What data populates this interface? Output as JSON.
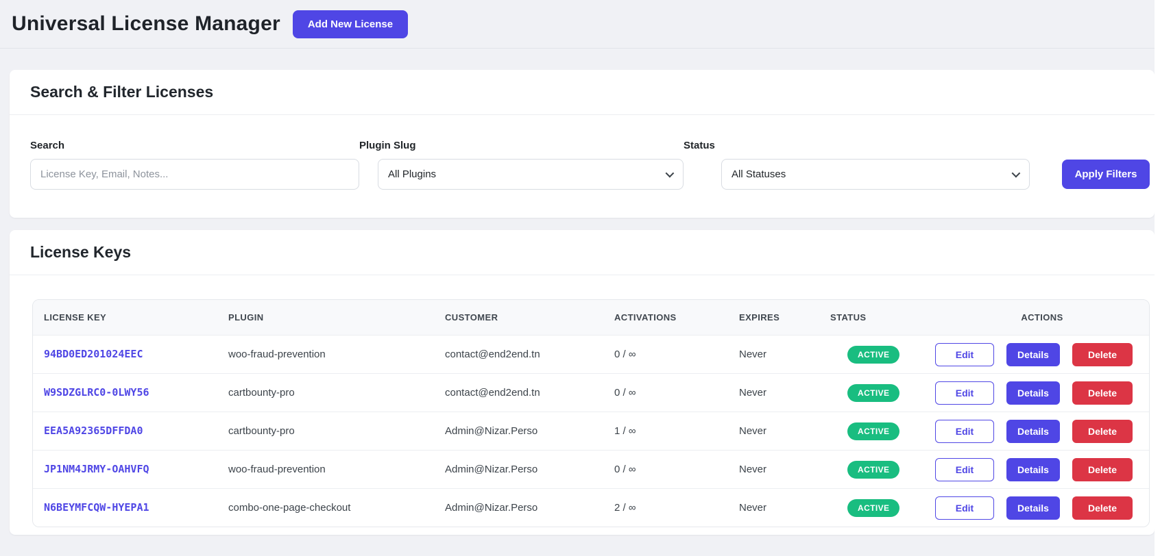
{
  "page": {
    "title": "Universal License Manager",
    "add_button": "Add New License"
  },
  "filters": {
    "card_title": "Search & Filter Licenses",
    "search_label": "Search",
    "search_placeholder": "License Key, Email, Notes...",
    "plugin_label": "Plugin Slug",
    "plugin_value": "All Plugins",
    "status_label": "Status",
    "status_value": "All Statuses",
    "apply_button": "Apply Filters"
  },
  "licenses": {
    "card_title": "License Keys",
    "columns": [
      "LICENSE KEY",
      "PLUGIN",
      "CUSTOMER",
      "ACTIVATIONS",
      "EXPIRES",
      "STATUS",
      "ACTIONS"
    ],
    "actions": {
      "edit": "Edit",
      "details": "Details",
      "delete": "Delete"
    },
    "rows": [
      {
        "key": "94BD0ED201024EEC",
        "plugin": "woo-fraud-prevention",
        "customer": "contact@end2end.tn",
        "activations": "0 / ∞",
        "expires": "Never",
        "status": "ACTIVE"
      },
      {
        "key": "W9SDZGLRC0-0LWY56",
        "plugin": "cartbounty-pro",
        "customer": "contact@end2end.tn",
        "activations": "0 / ∞",
        "expires": "Never",
        "status": "ACTIVE"
      },
      {
        "key": "EEA5A92365DFFDA0",
        "plugin": "cartbounty-pro",
        "customer": "Admin@Nizar.Perso",
        "activations": "1 / ∞",
        "expires": "Never",
        "status": "ACTIVE"
      },
      {
        "key": "JP1NM4JRMY-OAHVFQ",
        "plugin": "woo-fraud-prevention",
        "customer": "Admin@Nizar.Perso",
        "activations": "0 / ∞",
        "expires": "Never",
        "status": "ACTIVE"
      },
      {
        "key": "N6BEYMFCQW-HYEPA1",
        "plugin": "combo-one-page-checkout",
        "customer": "Admin@Nizar.Perso",
        "activations": "2 / ∞",
        "expires": "Never",
        "status": "ACTIVE"
      }
    ]
  },
  "colors": {
    "accent": "#4f46e5",
    "danger": "#dc3545",
    "success": "#19bd80",
    "page_background": "#f0f1f5"
  }
}
